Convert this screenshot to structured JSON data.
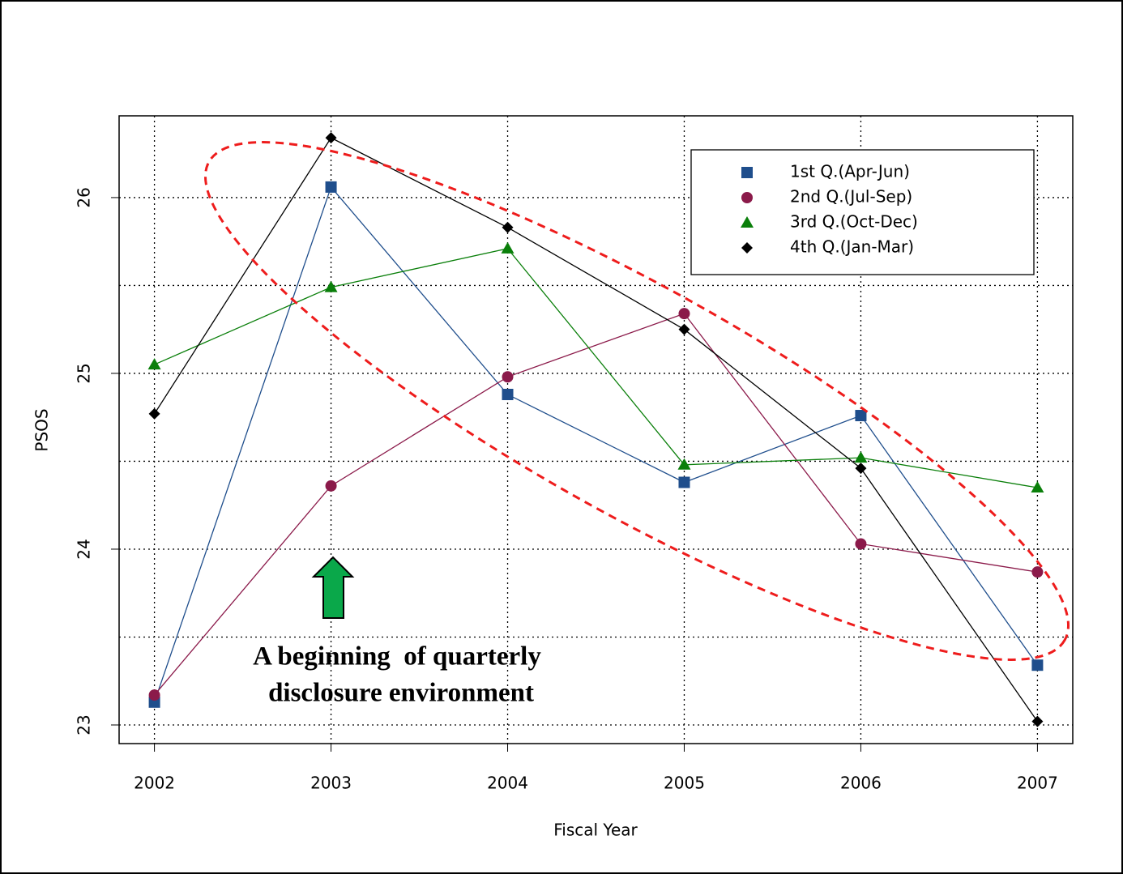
{
  "chart_data": {
    "type": "line",
    "x": [
      2002,
      2003,
      2004,
      2005,
      2006,
      2007
    ],
    "xlabel": "Fiscal Year",
    "ylabel": "PSOS",
    "xlim": [
      2001.8,
      2007.2
    ],
    "xticks": [
      2002,
      2003,
      2004,
      2005,
      2006,
      2007
    ],
    "ylim": [
      22.894,
      26.465
    ],
    "yticks": [
      23,
      24,
      25,
      26
    ],
    "ygrid": [
      23,
      23.5,
      24,
      24.5,
      25,
      25.5,
      26
    ],
    "grid": true,
    "legend": "upper right",
    "series": [
      {
        "name": "1st Q.(Apr-Jun)",
        "color": "#1f4e8c",
        "marker": "square",
        "values": [
          23.13,
          26.06,
          24.88,
          24.38,
          24.76,
          23.34
        ]
      },
      {
        "name": "2nd Q.(Jul-Sep)",
        "color": "#8b1a4a",
        "marker": "circle",
        "values": [
          23.17,
          24.36,
          24.98,
          25.34,
          24.03,
          23.87
        ]
      },
      {
        "name": "3rd Q.(Oct-Dec)",
        "color": "#0a7f0a",
        "marker": "triangle",
        "values": [
          25.05,
          25.49,
          25.71,
          24.48,
          24.52,
          24.35
        ]
      },
      {
        "name": "4th Q.(Jan-Mar)",
        "color": "#000000",
        "marker": "diamond",
        "values": [
          24.77,
          26.34,
          25.83,
          25.25,
          24.46,
          23.02
        ]
      }
    ],
    "annotations": [
      "A beginning  of quarterly",
      "disclosure environment"
    ]
  }
}
